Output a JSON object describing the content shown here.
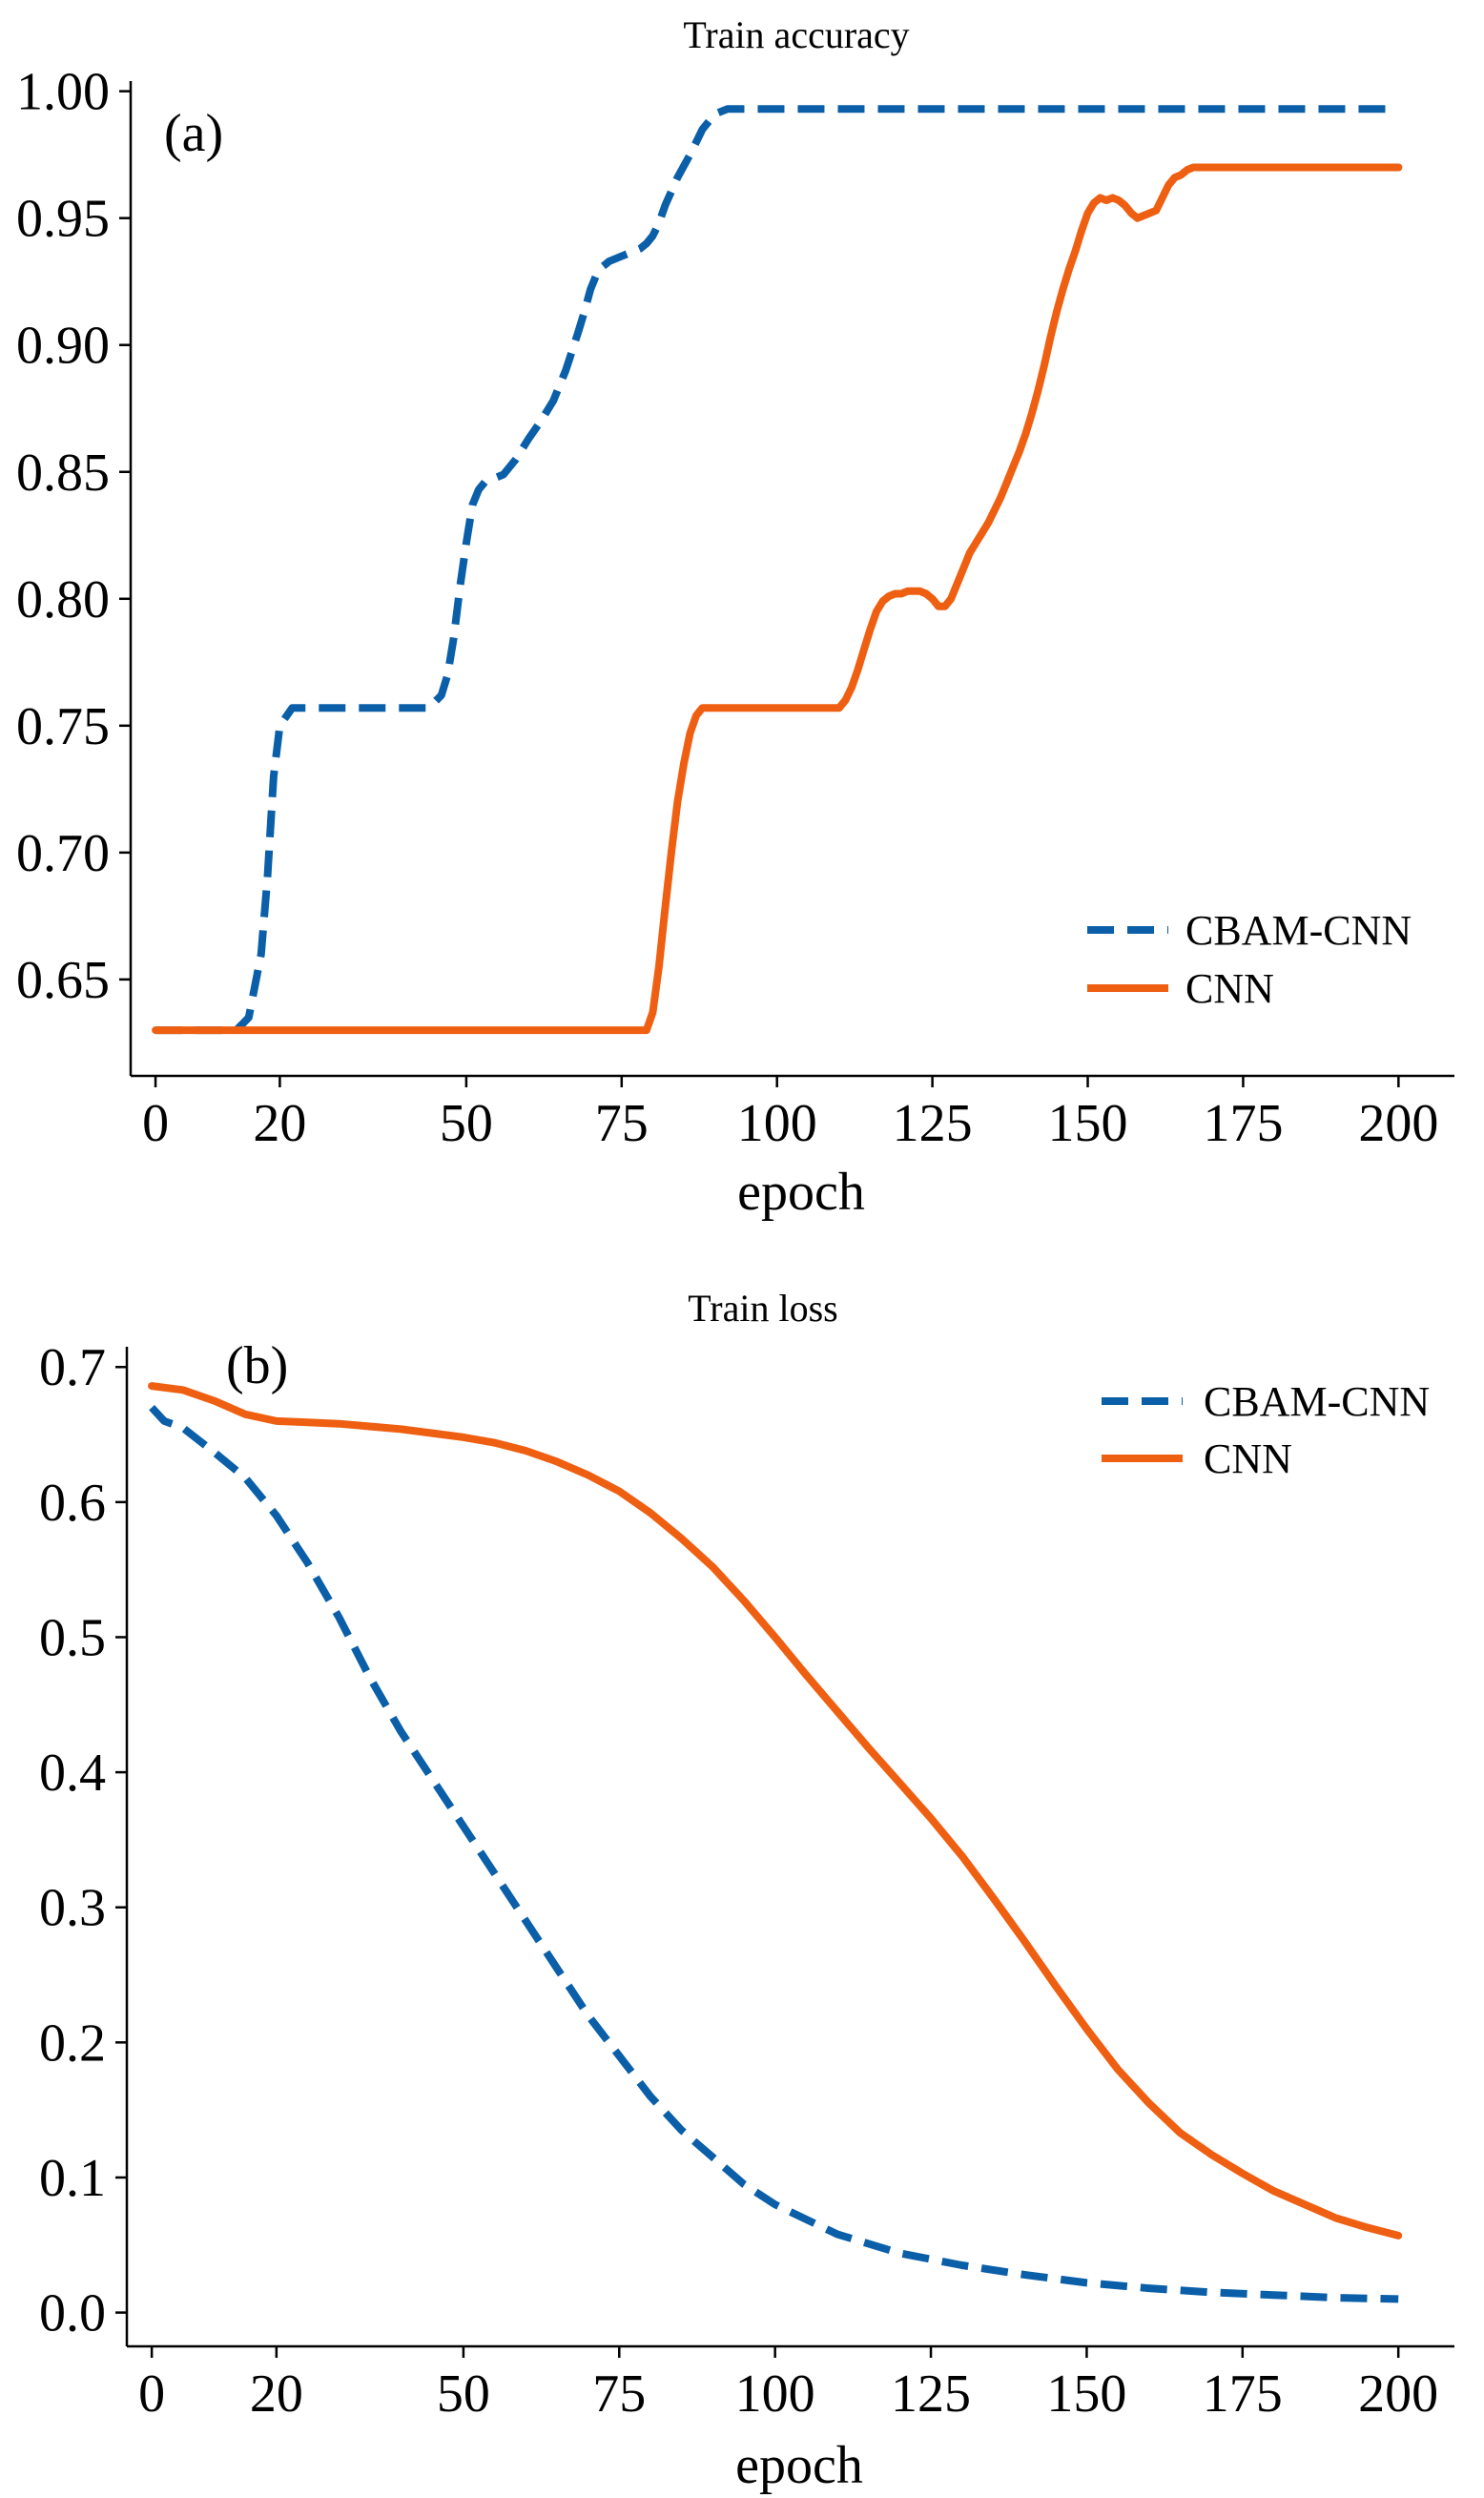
{
  "chart_data": [
    {
      "type": "line",
      "title": "Train accuracy",
      "panel_label": "(a)",
      "xlabel": "epoch",
      "ylabel": "",
      "xlim": [
        -4,
        209
      ],
      "ylim": [
        0.612,
        1.004
      ],
      "xticks": [
        0,
        20,
        50,
        75,
        100,
        125,
        150,
        175,
        200
      ],
      "xtick_labels": [
        "0",
        "20",
        "50",
        "75",
        "100",
        "125",
        "150",
        "175",
        "200"
      ],
      "yticks": [
        0.65,
        0.7,
        0.75,
        0.8,
        0.85,
        0.9,
        0.95,
        1.0
      ],
      "ytick_labels": [
        "0.65",
        "0.70",
        "0.75",
        "0.80",
        "0.85",
        "0.90",
        "0.95",
        "1.00"
      ],
      "grid": false,
      "legend_position": "lower-right",
      "series": [
        {
          "name": "CBAM-CNN",
          "style": "dashed",
          "color": "#0a5fa8",
          "x": [
            0,
            5,
            10,
            13,
            15,
            17,
            18,
            19,
            20,
            22,
            25,
            30,
            35,
            40,
            44,
            46,
            47,
            48,
            49,
            50,
            51,
            52,
            53,
            54,
            55,
            56,
            58,
            60,
            62,
            64,
            66,
            68,
            69,
            70,
            71,
            72,
            73,
            75,
            77,
            78,
            79,
            80,
            81,
            82,
            84,
            86,
            88,
            90,
            92,
            100,
            120,
            140,
            160,
            180,
            200
          ],
          "y": [
            0.63,
            0.63,
            0.63,
            0.63,
            0.635,
            0.66,
            0.69,
            0.73,
            0.75,
            0.757,
            0.757,
            0.757,
            0.757,
            0.757,
            0.757,
            0.762,
            0.77,
            0.785,
            0.805,
            0.822,
            0.837,
            0.843,
            0.846,
            0.847,
            0.848,
            0.849,
            0.855,
            0.863,
            0.87,
            0.878,
            0.89,
            0.905,
            0.913,
            0.922,
            0.928,
            0.931,
            0.933,
            0.935,
            0.937,
            0.938,
            0.94,
            0.943,
            0.948,
            0.955,
            0.966,
            0.975,
            0.985,
            0.991,
            0.993,
            0.993,
            0.993,
            0.993,
            0.993,
            0.993,
            0.993
          ]
        },
        {
          "name": "CNN",
          "style": "solid",
          "color": "#ef5f12",
          "x": [
            0,
            20,
            40,
            60,
            79,
            80,
            81,
            82,
            83,
            84,
            85,
            86,
            87,
            88,
            89,
            90,
            100,
            110,
            111,
            112,
            113,
            114,
            115,
            116,
            117,
            118,
            119,
            120,
            121,
            122,
            123,
            124,
            125,
            126,
            127,
            128,
            129,
            130,
            131,
            132,
            133,
            134,
            135,
            136,
            137,
            138,
            139,
            140,
            141,
            142,
            143,
            144,
            145,
            146,
            147,
            148,
            149,
            150,
            151,
            152,
            153,
            154,
            155,
            156,
            157,
            158,
            159,
            160,
            161,
            162,
            163,
            164,
            165,
            166,
            167,
            168,
            169,
            170,
            180,
            190,
            200
          ],
          "y": [
            0.63,
            0.63,
            0.63,
            0.63,
            0.63,
            0.637,
            0.655,
            0.678,
            0.7,
            0.72,
            0.735,
            0.747,
            0.754,
            0.757,
            0.757,
            0.757,
            0.757,
            0.757,
            0.76,
            0.765,
            0.772,
            0.78,
            0.788,
            0.795,
            0.799,
            0.801,
            0.802,
            0.802,
            0.803,
            0.803,
            0.803,
            0.802,
            0.8,
            0.797,
            0.797,
            0.8,
            0.806,
            0.812,
            0.818,
            0.822,
            0.826,
            0.83,
            0.835,
            0.84,
            0.846,
            0.852,
            0.858,
            0.865,
            0.873,
            0.882,
            0.892,
            0.903,
            0.913,
            0.922,
            0.93,
            0.937,
            0.945,
            0.952,
            0.956,
            0.958,
            0.957,
            0.958,
            0.957,
            0.955,
            0.952,
            0.95,
            0.951,
            0.952,
            0.953,
            0.958,
            0.963,
            0.966,
            0.967,
            0.969,
            0.97,
            0.97,
            0.97,
            0.97,
            0.97,
            0.97,
            0.97
          ]
        }
      ]
    },
    {
      "type": "line",
      "title": "Train loss",
      "panel_label": "(b)",
      "xlabel": "epoch",
      "ylabel": "",
      "xlim": [
        -4,
        209
      ],
      "ylim": [
        -0.025,
        0.715
      ],
      "xticks": [
        0,
        20,
        50,
        75,
        100,
        125,
        150,
        175,
        200
      ],
      "xtick_labels": [
        "0",
        "20",
        "50",
        "75",
        "100",
        "125",
        "150",
        "175",
        "200"
      ],
      "yticks": [
        0.0,
        0.1,
        0.2,
        0.3,
        0.4,
        0.5,
        0.6,
        0.7
      ],
      "ytick_labels": [
        "0.0",
        "0.1",
        "0.2",
        "0.3",
        "0.4",
        "0.5",
        "0.6",
        "0.7"
      ],
      "grid": false,
      "legend_position": "top-right",
      "series": [
        {
          "name": "CBAM-CNN",
          "style": "dashed",
          "color": "#0a5fa8",
          "x": [
            0,
            2,
            5,
            10,
            15,
            20,
            25,
            30,
            35,
            40,
            45,
            50,
            55,
            60,
            65,
            70,
            75,
            80,
            85,
            90,
            95,
            100,
            110,
            120,
            130,
            140,
            150,
            160,
            170,
            180,
            190,
            200
          ],
          "y": [
            0.67,
            0.66,
            0.655,
            0.637,
            0.618,
            0.59,
            0.555,
            0.515,
            0.47,
            0.43,
            0.395,
            0.36,
            0.325,
            0.29,
            0.255,
            0.22,
            0.19,
            0.16,
            0.135,
            0.115,
            0.095,
            0.08,
            0.058,
            0.044,
            0.035,
            0.028,
            0.022,
            0.018,
            0.015,
            0.013,
            0.011,
            0.01
          ]
        },
        {
          "name": "CNN",
          "style": "solid",
          "color": "#ef5f12",
          "x": [
            0,
            5,
            10,
            15,
            20,
            25,
            30,
            40,
            50,
            55,
            60,
            65,
            70,
            75,
            80,
            85,
            90,
            95,
            100,
            105,
            110,
            115,
            120,
            125,
            130,
            135,
            140,
            145,
            150,
            155,
            160,
            165,
            170,
            175,
            180,
            185,
            190,
            195,
            200
          ],
          "y": [
            0.686,
            0.683,
            0.675,
            0.665,
            0.66,
            0.659,
            0.658,
            0.654,
            0.648,
            0.644,
            0.638,
            0.63,
            0.62,
            0.608,
            0.592,
            0.573,
            0.552,
            0.527,
            0.5,
            0.472,
            0.445,
            0.418,
            0.392,
            0.366,
            0.338,
            0.307,
            0.275,
            0.242,
            0.21,
            0.18,
            0.155,
            0.133,
            0.117,
            0.103,
            0.09,
            0.08,
            0.07,
            0.063,
            0.057
          ]
        }
      ]
    }
  ]
}
